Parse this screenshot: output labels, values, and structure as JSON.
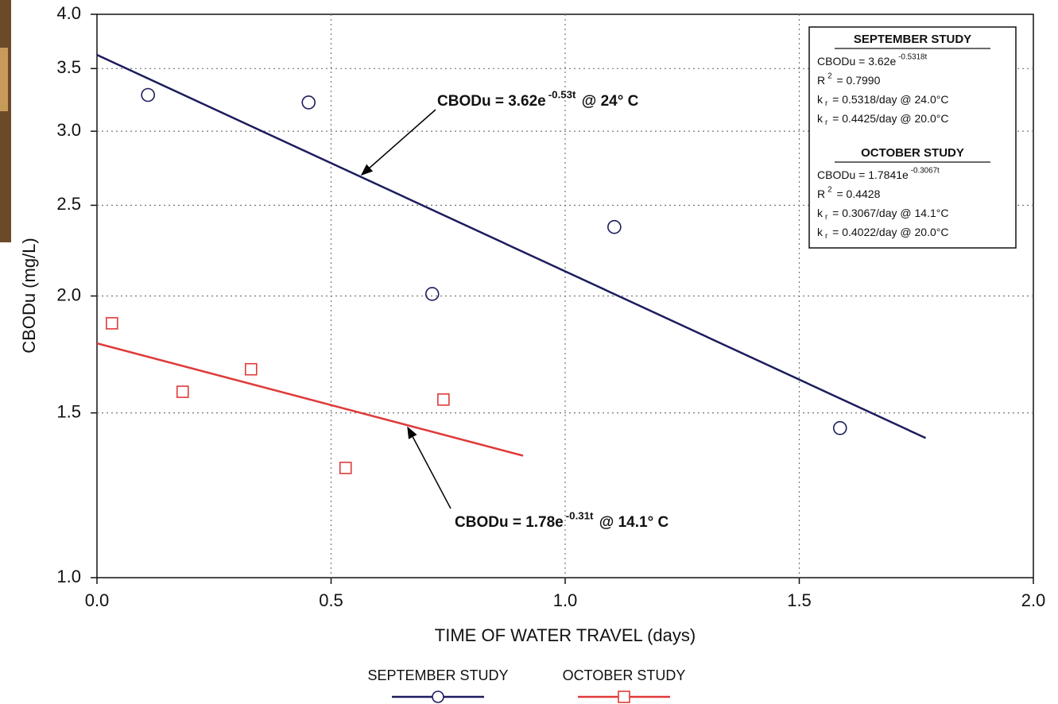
{
  "chart_data": {
    "type": "scatter",
    "x_label": "TIME OF WATER TRAVEL (days)",
    "y_label": "CBODu (mg/L)",
    "log_y": true,
    "grid": true,
    "xlim": [
      0,
      2
    ],
    "ylim": [
      1,
      4
    ],
    "xticks": [
      {
        "value": 0,
        "label": "0.0"
      },
      0.5,
      {
        "value": 1,
        "label": "1.0"
      },
      1.5,
      {
        "value": 2,
        "label": "2.0"
      }
    ],
    "yticks": [
      {
        "value": 1,
        "label": "1.0"
      },
      1.5,
      {
        "value": 2,
        "label": "2.0"
      },
      2.5,
      {
        "value": 3,
        "label": "3.0"
      },
      3.5,
      {
        "value": 4,
        "label": "4.0"
      }
    ],
    "series": [
      {
        "name": "SEPTEMBER STUDY",
        "color": "#1c1c5e",
        "marker": "circle",
        "x": [
          0.109,
          0.452,
          0.716,
          1.105,
          1.587
        ],
        "values": [
          3.28,
          3.22,
          2.01,
          2.37,
          1.445
        ],
        "fit": {
          "x": [
            0,
            1.77
          ],
          "values": [
            3.62,
            1.41
          ]
        }
      },
      {
        "name": "OCTOBER STUDY",
        "color": "#e03a3a",
        "marker": "square",
        "x": [
          0.032,
          0.183,
          0.329,
          0.531,
          0.74
        ],
        "values": [
          1.87,
          1.58,
          1.67,
          1.31,
          1.55
        ],
        "fit": {
          "x": [
            0,
            0.91
          ],
          "values": [
            1.78,
            1.35
          ]
        }
      }
    ],
    "annotations": [
      {
        "text": "CBODu = 3.62e",
        "sup": "-0.53t",
        "after": " @ 24° C"
      },
      {
        "text": "CBODu = 1.78e",
        "sup": "-0.31t",
        "after": " @ 14.1° C"
      }
    ],
    "info_box": [
      {
        "title": "SEPTEMBER STUDY",
        "lines": [
          {
            "text": "CBODu = 3.62e",
            "sup": "-0.5318t"
          },
          {
            "text": "R",
            "sup": "2",
            "after": " = 0.7990"
          },
          {
            "text": "k",
            "sub": "r",
            "after": " = 0.5318/day @ 24.0°C"
          },
          {
            "text": "k",
            "sub": "r",
            "after": " = 0.4425/day @ 20.0°C"
          }
        ]
      },
      {
        "title": "OCTOBER STUDY",
        "lines": [
          {
            "text": "CBODu = 1.7841e",
            "sup": "-0.3067t"
          },
          {
            "text": "R",
            "sup": "2",
            "after": " = 0.4428"
          },
          {
            "text": "k",
            "sub": "r",
            "after": " = 0.3067/day @ 14.1°C"
          },
          {
            "text": "k",
            "sub": "r",
            "after": " = 0.4022/day @ 20.0°C"
          }
        ]
      }
    ]
  }
}
